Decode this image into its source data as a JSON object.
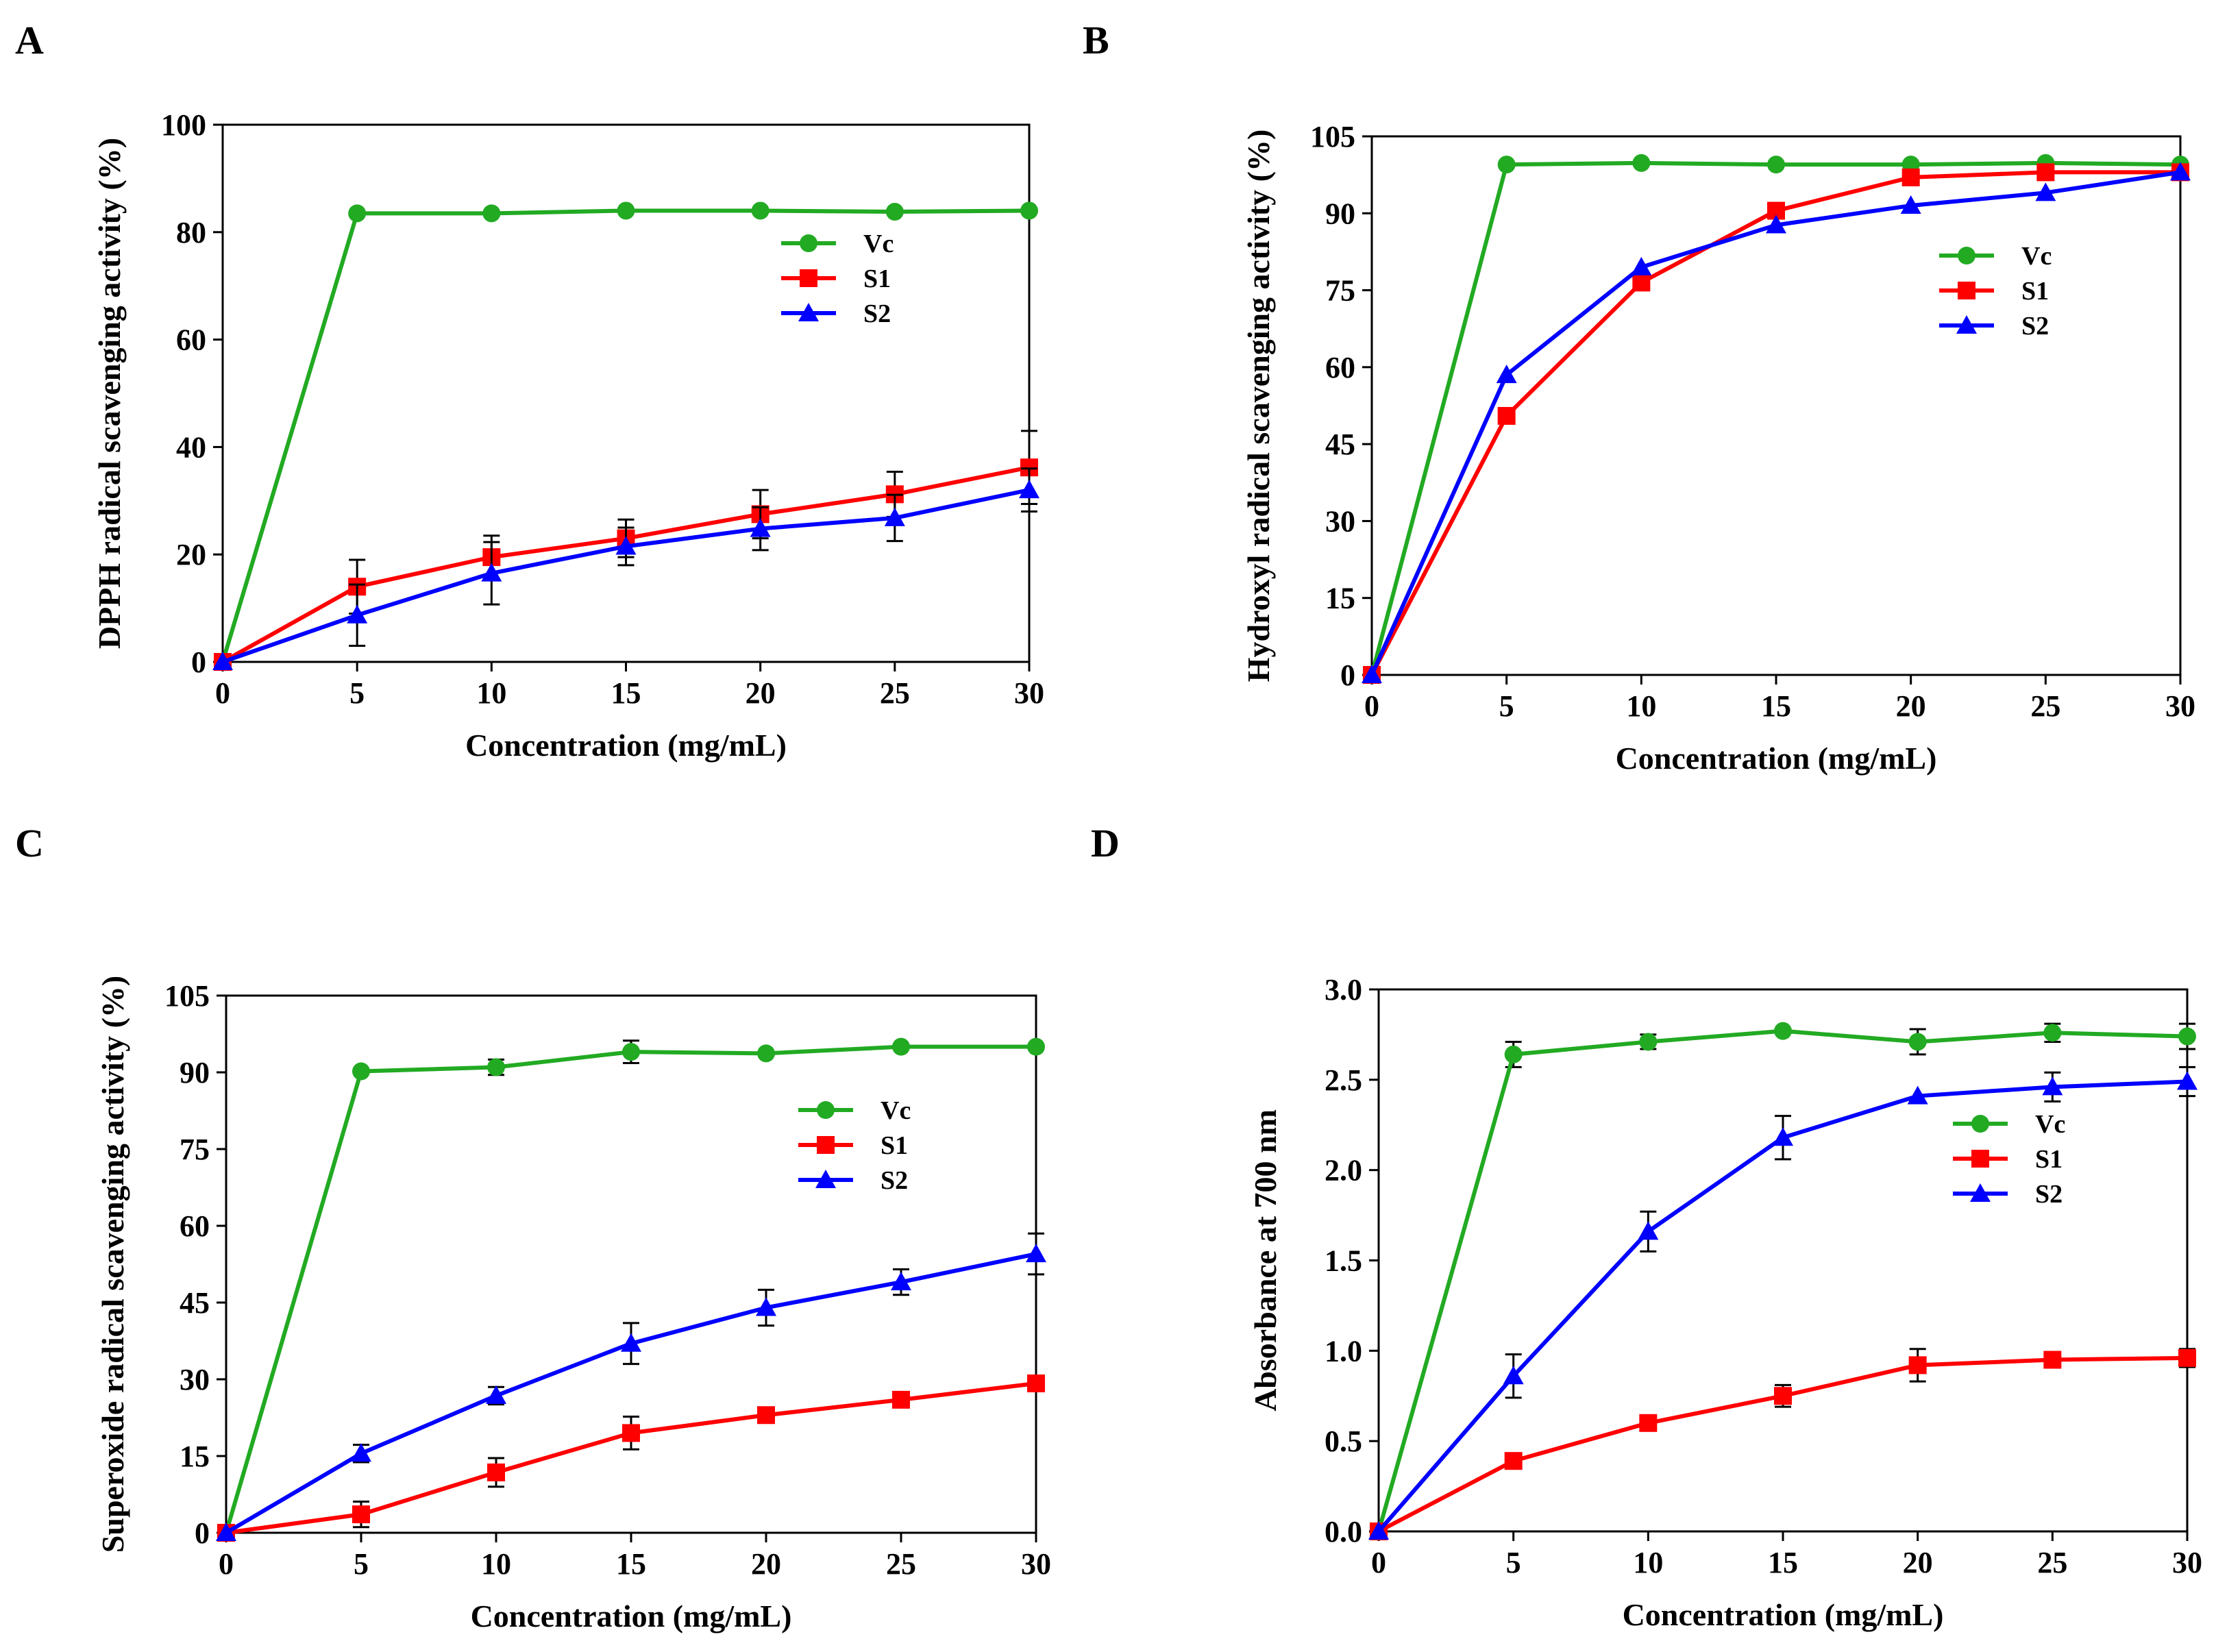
{
  "figure": {
    "panels": [
      "A",
      "B",
      "C",
      "D"
    ]
  },
  "series_style": {
    "Vc": {
      "color": "#22aa22",
      "marker": "circle"
    },
    "S1": {
      "color": "#ff0000",
      "marker": "square"
    },
    "S2": {
      "color": "#0000ff",
      "marker": "triangle"
    }
  },
  "chart_data": [
    {
      "panel": "A",
      "type": "line",
      "xlabel": "Concentration (mg/mL)",
      "ylabel": "DPPH radical scavenging activity (%)",
      "x": [
        0,
        5,
        10,
        15,
        20,
        25,
        30
      ],
      "xlim": [
        0,
        30
      ],
      "ylim": [
        0,
        100
      ],
      "xticks": [
        0,
        5,
        10,
        15,
        20,
        25,
        30
      ],
      "yticks": [
        0,
        20,
        40,
        60,
        80,
        100
      ],
      "legend": "upper-right",
      "series": [
        {
          "name": "Vc",
          "values": [
            0,
            83.5,
            83.5,
            84,
            84,
            83.8,
            84
          ],
          "errors": [
            0,
            0,
            0,
            0,
            0,
            0,
            0
          ]
        },
        {
          "name": "S1",
          "values": [
            0,
            14,
            19.5,
            23,
            27.5,
            31.2,
            36.2
          ],
          "errors": [
            0,
            5,
            4,
            3.5,
            4.5,
            4.2,
            6.8
          ]
        },
        {
          "name": "S2",
          "values": [
            0,
            8.7,
            16.5,
            21.5,
            24.8,
            26.8,
            32
          ],
          "errors": [
            0,
            5.7,
            5.8,
            3.5,
            4,
            4.3,
            4
          ]
        }
      ]
    },
    {
      "panel": "B",
      "type": "line",
      "xlabel": "Concentration (mg/mL)",
      "ylabel": "Hydroxyl radical scavenging activity (%)",
      "x": [
        0,
        5,
        10,
        15,
        20,
        25,
        30
      ],
      "xlim": [
        0,
        30
      ],
      "ylim": [
        0,
        105
      ],
      "xticks": [
        0,
        5,
        10,
        15,
        20,
        25,
        30
      ],
      "yticks": [
        0,
        15,
        30,
        45,
        60,
        75,
        90,
        105
      ],
      "legend": "upper-right",
      "series": [
        {
          "name": "Vc",
          "values": [
            0,
            99.5,
            99.8,
            99.5,
            99.5,
            99.8,
            99.5
          ],
          "errors": [
            0,
            0,
            0,
            0,
            0,
            0,
            0
          ]
        },
        {
          "name": "S1",
          "values": [
            0,
            50.5,
            76.5,
            90.5,
            97,
            98,
            98
          ],
          "errors": [
            0,
            0,
            0,
            0,
            0,
            0,
            0
          ]
        },
        {
          "name": "S2",
          "values": [
            0,
            58.5,
            79.5,
            87.7,
            91.5,
            94,
            98
          ],
          "errors": [
            0,
            0,
            0,
            0,
            0,
            0,
            0
          ]
        }
      ]
    },
    {
      "panel": "C",
      "type": "line",
      "xlabel": "Concentration (mg/mL)",
      "ylabel": "Superoxide radical scavenging activity (%)",
      "x": [
        0,
        5,
        10,
        15,
        20,
        25,
        30
      ],
      "xlim": [
        0,
        30
      ],
      "ylim": [
        0,
        105
      ],
      "xticks": [
        0,
        5,
        10,
        15,
        20,
        25,
        30
      ],
      "yticks": [
        0,
        15,
        30,
        45,
        60,
        75,
        90,
        105
      ],
      "legend": "right",
      "series": [
        {
          "name": "Vc",
          "values": [
            0,
            90.2,
            91,
            94,
            93.7,
            95,
            95
          ],
          "errors": [
            0,
            0,
            1.5,
            2.2,
            0,
            0,
            0
          ]
        },
        {
          "name": "S1",
          "values": [
            0,
            3.6,
            11.8,
            19.5,
            23,
            26,
            29.2
          ],
          "errors": [
            0,
            2.5,
            2.8,
            3.2,
            0,
            0,
            0
          ]
        },
        {
          "name": "S2",
          "values": [
            0,
            15.5,
            26.8,
            37,
            44,
            49,
            54.5
          ],
          "errors": [
            0,
            1.7,
            1.7,
            4,
            3.5,
            2.5,
            4
          ]
        }
      ]
    },
    {
      "panel": "D",
      "type": "line",
      "xlabel": "Concentration (mg/mL)",
      "ylabel": "Absorbance at 700 nm",
      "x": [
        0,
        5,
        10,
        15,
        20,
        25,
        30
      ],
      "xlim": [
        0,
        30
      ],
      "ylim": [
        0,
        3.0
      ],
      "xticks": [
        0,
        5,
        10,
        15,
        20,
        25,
        30
      ],
      "yticks": [
        0.0,
        0.5,
        1.0,
        1.5,
        2.0,
        2.5,
        3.0
      ],
      "ytick_decimals": 1,
      "legend": "right",
      "series": [
        {
          "name": "Vc",
          "values": [
            0,
            2.64,
            2.71,
            2.77,
            2.71,
            2.76,
            2.74
          ],
          "errors": [
            0,
            0.07,
            0.04,
            0,
            0.07,
            0.05,
            0.07
          ]
        },
        {
          "name": "S1",
          "values": [
            0,
            0.39,
            0.6,
            0.75,
            0.92,
            0.95,
            0.96
          ],
          "errors": [
            0,
            0,
            0.04,
            0.06,
            0.09,
            0,
            0.05
          ]
        },
        {
          "name": "S2",
          "values": [
            0,
            0.86,
            1.66,
            2.18,
            2.41,
            2.46,
            2.49
          ],
          "errors": [
            0,
            0.12,
            0.11,
            0.12,
            0,
            0.08,
            0.08
          ]
        }
      ]
    }
  ]
}
